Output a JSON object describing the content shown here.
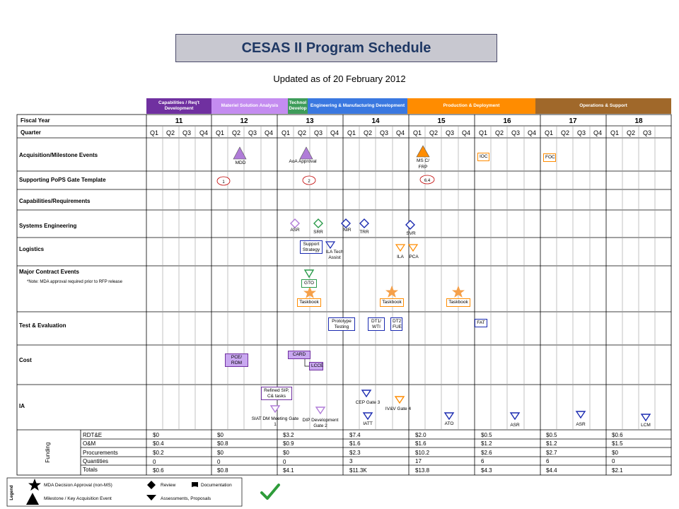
{
  "title": "CESAS II Program Schedule",
  "subtitle": "Updated as of 20 February  2012",
  "phases": [
    {
      "label": "Capabilities / Req't Development",
      "color": "#7030a0"
    },
    {
      "label": "Materiel Solution Analysis",
      "color": "#c48cf0"
    },
    {
      "label": "Technol Develop",
      "color": "#3e9c5a"
    },
    {
      "label": "Engineering & Manufacturing Development",
      "color": "#3a78e0"
    },
    {
      "label": "Production & Deployment",
      "color": "#ff8c00"
    },
    {
      "label": "Operations & Support",
      "color": "#a0682a"
    }
  ],
  "header": {
    "fiscal_year_label": "Fiscal Year",
    "quarter_label": "Quarter"
  },
  "years": [
    "11",
    "12",
    "13",
    "14",
    "15",
    "16",
    "17",
    "18"
  ],
  "quarters": [
    "Q1",
    "Q2",
    "Q3",
    "Q4",
    "Q1",
    "Q2",
    "Q3",
    "Q4",
    "Q1",
    "Q2",
    "Q3",
    "Q4",
    "Q1",
    "Q2",
    "Q3",
    "Q4",
    "Q1",
    "Q2",
    "Q3",
    "Q4",
    "Q1",
    "Q2",
    "Q3",
    "Q4",
    "Q1",
    "Q2",
    "Q3",
    "Q4",
    "Q1",
    "Q2",
    "Q3"
  ],
  "rows": {
    "acquisition": "Acquisition/Milestone Events",
    "pops": "Supporting PoPS Gate Template",
    "capabilities": "Capabilities/Requirements",
    "se": "Systems Engineering",
    "logistics": "Logistics",
    "contract": "Major Contract Events",
    "contract_note": "*Note: MDA approval required prior to RFP release",
    "te": "Test & Evaluation",
    "cost": "Cost",
    "ia": "IA"
  },
  "events": {
    "mdd": "MDD",
    "aoa": "AoA  Approval",
    "msc": "MS C/ FRP",
    "ioc": "IOC",
    "foc": "FOC",
    "gate1": "1",
    "gate2": "2",
    "gate64": "6.4",
    "asr": "ASR",
    "srr": "SRR",
    "nir": "NIR",
    "trr": "TRR",
    "svr": "SVR",
    "support_strategy": "Support Strategy",
    "ila_tech": "ILA Tech Assist",
    "ila": "ILA",
    "pca": "PCA",
    "gto": "GTO",
    "taskbook": "Taskbook",
    "prototype": "Prototype Testing",
    "dt1": "DT1/ WTI",
    "dt2": "DT2 FUE",
    "fat": "FAT",
    "pce": "PCE/ ROM",
    "card": "CARD",
    "lcce": "LCCE",
    "refined_sip": "Refined SIP, C& tasks",
    "siat": "SIAT DM Meeting Gate 1",
    "dip": "DIP Development Gate 2",
    "cep": "CEP Gate 3",
    "ivv": "IV&V Gate 4",
    "iatt": "IATT",
    "ato": "ATO",
    "lcm": "LCM"
  },
  "funding": {
    "label": "Funding",
    "rows": [
      {
        "name": "RDT&E",
        "values": [
          "$0",
          "$0",
          "$3.2",
          "$7.4",
          "$2.0",
          "$0.5",
          "$0.5",
          "$0.6"
        ]
      },
      {
        "name": "O&M",
        "values": [
          "$0.4",
          "$0.8",
          "$0.9",
          "$1.6",
          "$1.6",
          "$1.2",
          "$1.2",
          "$1.5"
        ]
      },
      {
        "name": "Procurements",
        "values": [
          "$0.2",
          "$0",
          "$0",
          "$2.3",
          "$10.2",
          "$2.6",
          "$2.7",
          "$0"
        ]
      },
      {
        "name": "Quantities",
        "values": [
          "0",
          "0",
          "0",
          "3",
          "17",
          "6",
          "6",
          "0"
        ]
      },
      {
        "name": "Totals",
        "values": [
          "$0.6",
          "$0.8",
          "$4.1",
          "$11.3K",
          "$13.8",
          "$4.3",
          "$4.4",
          "$2.1"
        ]
      }
    ]
  },
  "legend": {
    "label": "Legend",
    "items": [
      "MDA Decision Approval (non-MS)",
      "Review",
      "Documentation",
      "Milestone / Key Acquisition Event",
      "Assessments, Proposals"
    ]
  }
}
